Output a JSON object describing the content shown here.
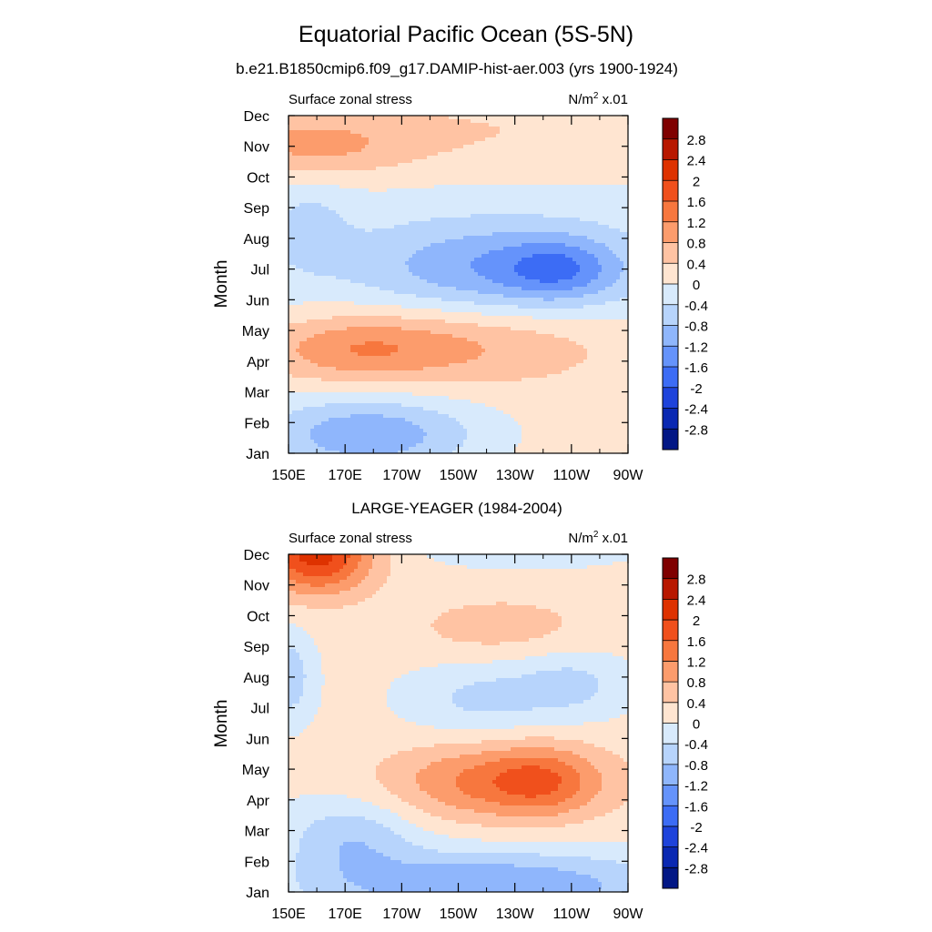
{
  "figure": {
    "title": "Equatorial Pacific Ocean (5S-5N)"
  },
  "chart_data": [
    {
      "type": "heatmap",
      "title": "b.e21.B1850cmip6.f09_g17.DAMIP-hist-aer.003 (yrs 1900-1924)",
      "left_label": "Surface zonal stress",
      "units_label": "N/m",
      "units_sup": "2",
      "units_scale": " x.01",
      "ylabel": "Month",
      "xticks": [
        "150E",
        "170E",
        "170W",
        "150W",
        "130W",
        "110W",
        "90W"
      ],
      "x_longitudes": [
        150,
        170,
        190,
        210,
        230,
        250,
        270
      ],
      "yticks": [
        "Jan",
        "Feb",
        "Mar",
        "Apr",
        "May",
        "Jun",
        "Jul",
        "Aug",
        "Sep",
        "Oct",
        "Nov",
        "Dec"
      ],
      "xlim": [
        150,
        270
      ],
      "ylim": [
        "Jan",
        "Dec"
      ],
      "colorbar_levels": [
        -2.8,
        -2.4,
        -2,
        -1.6,
        -1.2,
        -0.8,
        -0.4,
        0,
        0.4,
        0.8,
        1.2,
        1.6,
        2,
        2.4,
        2.8
      ],
      "features": [
        {
          "kind": "max",
          "lon": 173,
          "month": 3.35,
          "value": 1.4
        },
        {
          "kind": "max",
          "lon": 158,
          "month": 10.0,
          "value": 1.2
        },
        {
          "kind": "min",
          "lon": 245,
          "month": 6.0,
          "value": -1.8
        },
        {
          "kind": "min",
          "lon": 172,
          "month": 0.4,
          "value": -1.7
        }
      ]
    },
    {
      "type": "heatmap",
      "title": "LARGE-YEAGER (1984-2004)",
      "left_label": "Surface zonal stress",
      "units_label": "N/m",
      "units_sup": "2",
      "units_scale": " x.01",
      "ylabel": "Month",
      "xticks": [
        "150E",
        "170E",
        "170W",
        "150W",
        "130W",
        "110W",
        "90W"
      ],
      "x_longitudes": [
        150,
        170,
        190,
        210,
        230,
        250,
        270
      ],
      "yticks": [
        "Jan",
        "Feb",
        "Mar",
        "Apr",
        "May",
        "Jun",
        "Jul",
        "Aug",
        "Sep",
        "Oct",
        "Nov",
        "Dec"
      ],
      "xlim": [
        150,
        270
      ],
      "ylim": [
        "Jan",
        "Dec"
      ],
      "colorbar_levels": [
        -2.8,
        -2.4,
        -2,
        -1.6,
        -1.2,
        -0.8,
        -0.4,
        0,
        0.4,
        0.8,
        1.2,
        1.6,
        2,
        2.4,
        2.8
      ],
      "features": [
        {
          "kind": "max",
          "lon": 159,
          "month": 10.9,
          "value": 2.0
        },
        {
          "kind": "max",
          "lon": 237,
          "month": 3.2,
          "value": 1.5
        },
        {
          "kind": "min",
          "lon": 218,
          "month": 0.1,
          "value": -1.7
        },
        {
          "kind": "min",
          "lon": 238,
          "month": 6.5,
          "value": -1.3
        }
      ]
    }
  ],
  "colorbar": {
    "labels": [
      "2.8",
      "2.4",
      "2",
      "1.6",
      "1.2",
      "0.8",
      "0.4",
      "0",
      "-0.4",
      "-0.8",
      "-1.2",
      "-1.6",
      "-2",
      "-2.4",
      "-2.8"
    ],
    "colors": [
      "#7f0000",
      "#b81800",
      "#de3200",
      "#f0501c",
      "#f7773e",
      "#fc9c6c",
      "#ffc3a3",
      "#ffe5d1",
      "#d8eafc",
      "#b7d4fc",
      "#8fb6fc",
      "#6593fb",
      "#3c6cf5",
      "#1e43db",
      "#0a28b2",
      "#021785"
    ]
  }
}
